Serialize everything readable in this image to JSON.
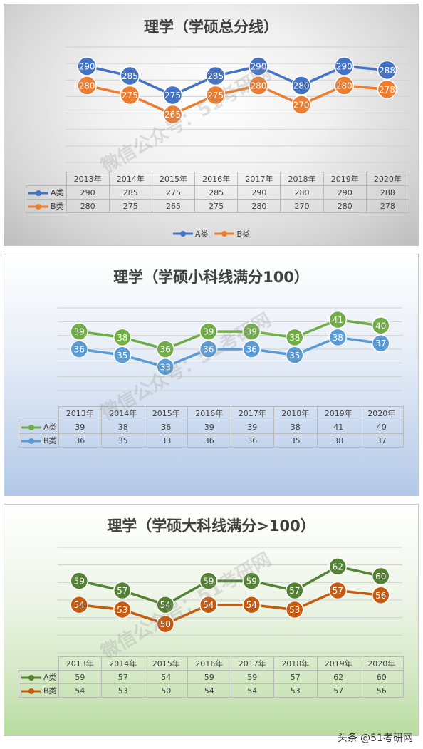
{
  "watermark": "微信公众号：51考研网",
  "footer": "头条 @51考研网",
  "chart_data": [
    {
      "type": "line",
      "title": "理学（学硕总分线）",
      "categories": [
        "2013年",
        "2014年",
        "2015年",
        "2016年",
        "2017年",
        "2018年",
        "2019年",
        "2020年"
      ],
      "ylim": [
        240,
        300
      ],
      "grid": true,
      "legend": "bottom",
      "series": [
        {
          "name": "A类",
          "color": "#4472c4",
          "values": [
            290,
            285,
            275,
            285,
            290,
            280,
            290,
            288
          ]
        },
        {
          "name": "B类",
          "color": "#ed7d31",
          "values": [
            280,
            275,
            265,
            275,
            280,
            270,
            280,
            278
          ]
        }
      ]
    },
    {
      "type": "line",
      "title": "理学（学硕小科线满分100）",
      "categories": [
        "2013年",
        "2014年",
        "2015年",
        "2016年",
        "2017年",
        "2018年",
        "2019年",
        "2020年"
      ],
      "ylim": [
        29,
        43
      ],
      "grid": true,
      "series": [
        {
          "name": "A类",
          "color": "#70ad47",
          "values": [
            39,
            38,
            36,
            39,
            39,
            38,
            41,
            40
          ]
        },
        {
          "name": "B类",
          "color": "#5b9bd5",
          "values": [
            36,
            35,
            33,
            36,
            36,
            35,
            38,
            37
          ]
        }
      ]
    },
    {
      "type": "line",
      "title": "理学（学硕大科线满分>100）",
      "categories": [
        "2013年",
        "2014年",
        "2015年",
        "2016年",
        "2017年",
        "2018年",
        "2019年",
        "2020年"
      ],
      "ylim": [
        44,
        66
      ],
      "grid": true,
      "series": [
        {
          "name": "A类",
          "color": "#548235",
          "values": [
            59,
            57,
            54,
            59,
            59,
            57,
            62,
            60
          ]
        },
        {
          "name": "B类",
          "color": "#c55a11",
          "values": [
            54,
            53,
            50,
            54,
            54,
            53,
            57,
            56
          ]
        }
      ]
    }
  ]
}
